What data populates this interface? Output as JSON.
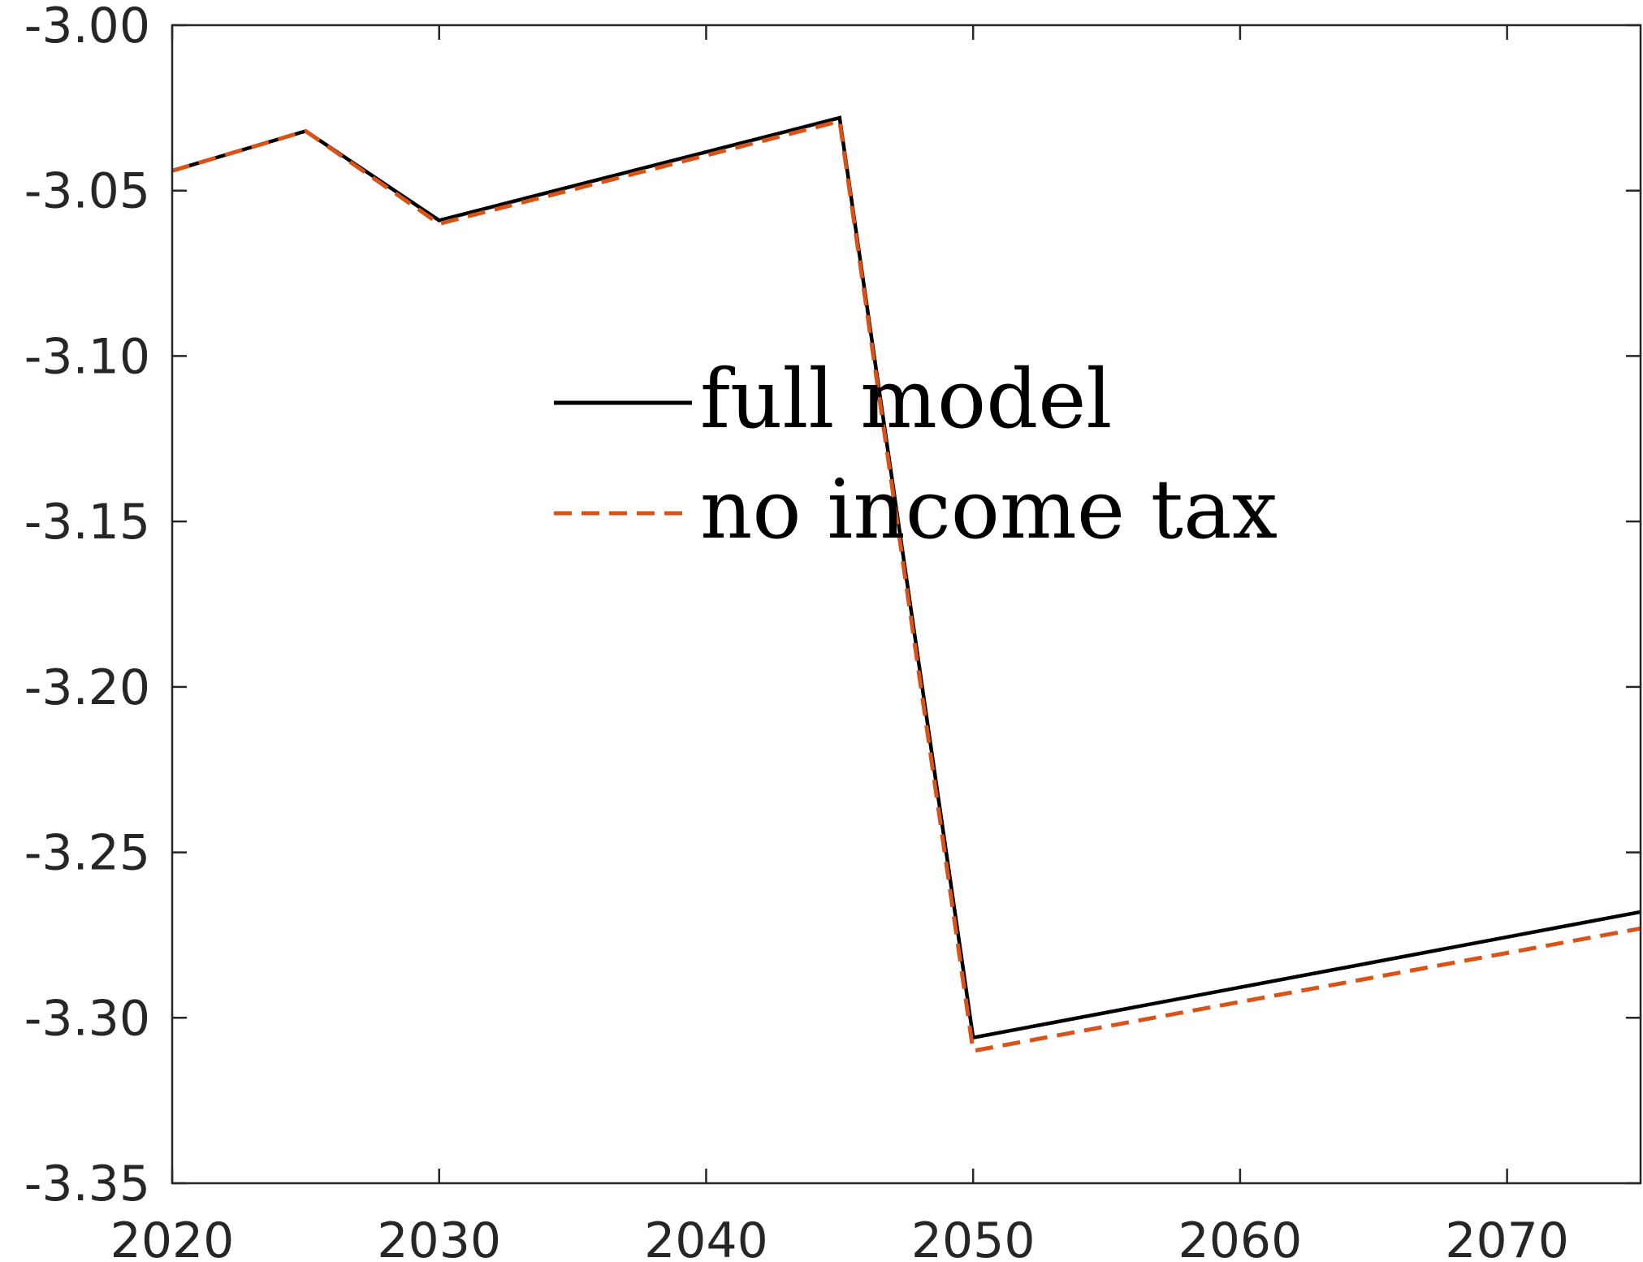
{
  "chart_data": {
    "type": "line",
    "title": "",
    "xlabel": "",
    "ylabel": "",
    "xlim": [
      2020,
      2075
    ],
    "ylim": [
      -3.35,
      -3.0
    ],
    "xticks": [
      2020,
      2030,
      2040,
      2050,
      2060,
      2070
    ],
    "yticks": [
      -3.35,
      -3.3,
      -3.25,
      -3.2,
      -3.15,
      -3.1,
      -3.05,
      -3.0
    ],
    "xtick_labels": [
      "2020",
      "2030",
      "2040",
      "2050",
      "2060",
      "2070"
    ],
    "ytick_labels": [
      "-3.35",
      "-3.30",
      "-3.25",
      "-3.20",
      "-3.15",
      "-3.10",
      "-3.05",
      "-3.00"
    ],
    "x": [
      2020,
      2025,
      2030,
      2045,
      2050,
      2075
    ],
    "grid": false,
    "legend_position": "center",
    "series": [
      {
        "name": "full model",
        "values": [
          -3.044,
          -3.032,
          -3.059,
          -3.028,
          -3.306,
          -3.268
        ],
        "color": "#000000",
        "style": "solid"
      },
      {
        "name": "no income tax",
        "values": [
          -3.044,
          -3.032,
          -3.06,
          -3.029,
          -3.31,
          -3.273
        ],
        "color": "#d95319",
        "style": "dashed"
      }
    ]
  }
}
